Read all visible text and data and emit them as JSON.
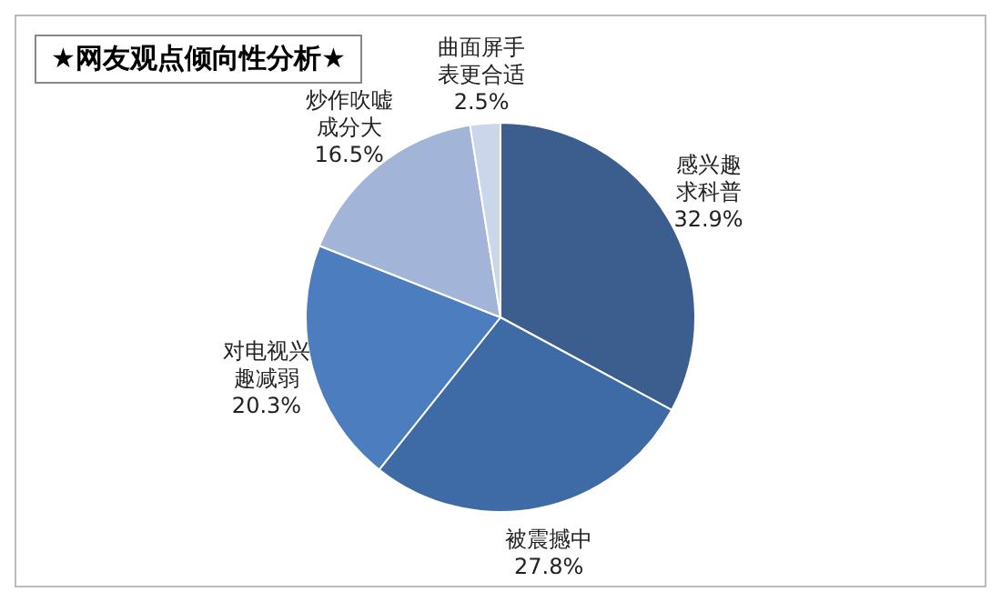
{
  "chart_data": {
    "type": "pie",
    "title": "★网友观点倾向性分析★",
    "categories": [
      "感兴趣求科普",
      "被震撼中",
      "对电视兴趣减弱",
      "炒作吹嘘成分大",
      "曲面屏手表更合适"
    ],
    "values": [
      32.9,
      27.8,
      20.3,
      16.5,
      2.5
    ],
    "value_labels": [
      "32.9%",
      "27.8%",
      "20.3%",
      "16.5%",
      "2.5%"
    ],
    "colors": [
      "#3b5e8e",
      "#3e6ba6",
      "#4b7dbf",
      "#a2b5d8",
      "#cbd6ea"
    ],
    "legend": false
  }
}
